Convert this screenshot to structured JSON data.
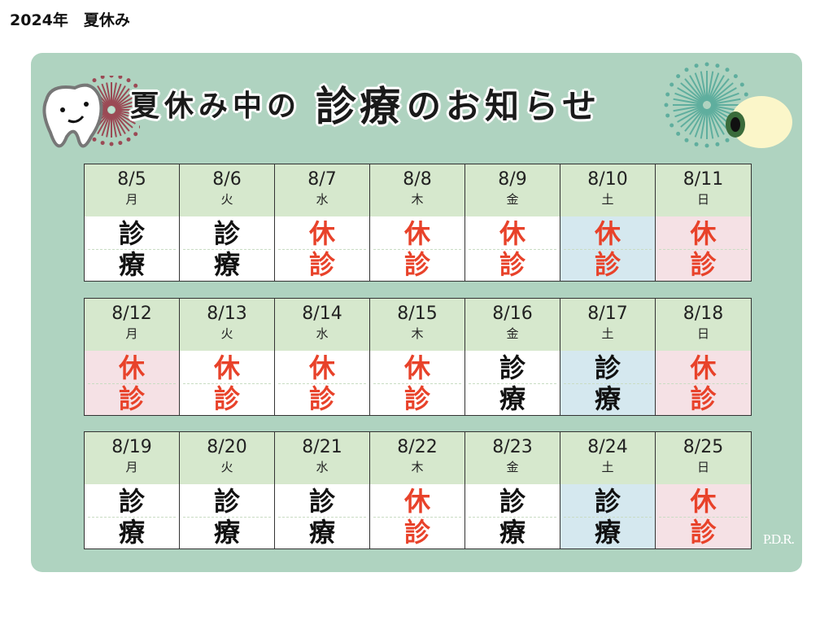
{
  "page_title": "2024年　夏休み",
  "headline": {
    "part1": "夏休み中の",
    "part2": "診療",
    "part3": "のお知らせ"
  },
  "status_text": {
    "open": [
      "診",
      "療"
    ],
    "closed": [
      "休",
      "診"
    ]
  },
  "colors": {
    "board": "#afd3c0",
    "header": "#d6e8cd",
    "closed_text": "#e8422a",
    "saturday_bg": "#d5e8ef",
    "holiday_bg": "#f5e1e5"
  },
  "weeks": [
    [
      {
        "date": "8/5",
        "day": "月",
        "status": "open",
        "bg": "white"
      },
      {
        "date": "8/6",
        "day": "火",
        "status": "open",
        "bg": "white"
      },
      {
        "date": "8/7",
        "day": "水",
        "status": "closed",
        "bg": "white"
      },
      {
        "date": "8/8",
        "day": "木",
        "status": "closed",
        "bg": "white"
      },
      {
        "date": "8/9",
        "day": "金",
        "status": "closed",
        "bg": "white"
      },
      {
        "date": "8/10",
        "day": "土",
        "status": "closed",
        "bg": "blue"
      },
      {
        "date": "8/11",
        "day": "日",
        "status": "closed",
        "bg": "pink"
      }
    ],
    [
      {
        "date": "8/12",
        "day": "月",
        "status": "closed",
        "bg": "pink"
      },
      {
        "date": "8/13",
        "day": "火",
        "status": "closed",
        "bg": "white"
      },
      {
        "date": "8/14",
        "day": "水",
        "status": "closed",
        "bg": "white"
      },
      {
        "date": "8/15",
        "day": "木",
        "status": "closed",
        "bg": "white"
      },
      {
        "date": "8/16",
        "day": "金",
        "status": "open",
        "bg": "white"
      },
      {
        "date": "8/17",
        "day": "土",
        "status": "open",
        "bg": "blue"
      },
      {
        "date": "8/18",
        "day": "日",
        "status": "closed",
        "bg": "pink"
      }
    ],
    [
      {
        "date": "8/19",
        "day": "月",
        "status": "open",
        "bg": "white"
      },
      {
        "date": "8/20",
        "day": "火",
        "status": "open",
        "bg": "white"
      },
      {
        "date": "8/21",
        "day": "水",
        "status": "open",
        "bg": "white"
      },
      {
        "date": "8/22",
        "day": "木",
        "status": "closed",
        "bg": "white"
      },
      {
        "date": "8/23",
        "day": "金",
        "status": "open",
        "bg": "white"
      },
      {
        "date": "8/24",
        "day": "土",
        "status": "open",
        "bg": "blue"
      },
      {
        "date": "8/25",
        "day": "日",
        "status": "closed",
        "bg": "pink"
      }
    ]
  ],
  "logo": "P.D.R."
}
